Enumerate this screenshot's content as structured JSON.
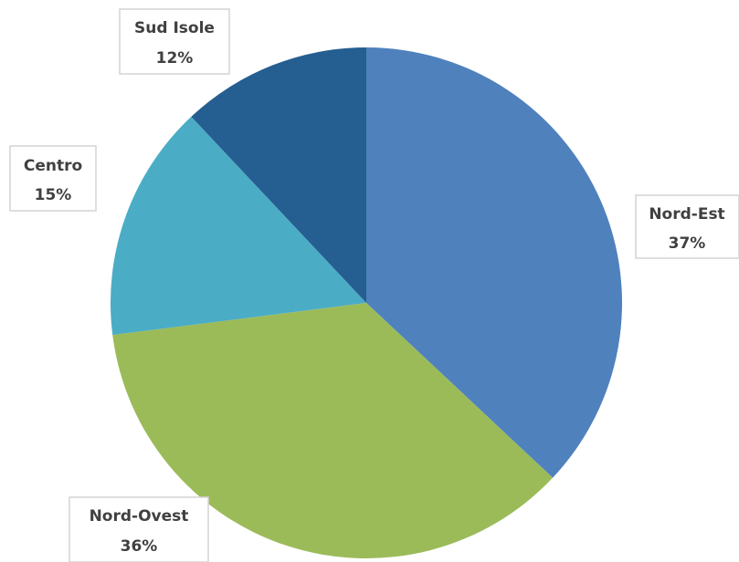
{
  "chart_data": {
    "type": "pie",
    "title": "",
    "categories": [
      "Nord-Est",
      "Nord-Ovest",
      "Centro",
      "Sud Isole"
    ],
    "values": [
      37,
      36,
      15,
      12
    ],
    "value_labels": [
      "37%",
      "36%",
      "15%",
      "12%"
    ],
    "colors": [
      "#4F81BD",
      "#9BBB59",
      "#4BACC6",
      "#255E91"
    ],
    "start_angle_deg": 0,
    "direction": "clockwise",
    "legend": "none",
    "data_labels": "category and percentage, outside"
  }
}
